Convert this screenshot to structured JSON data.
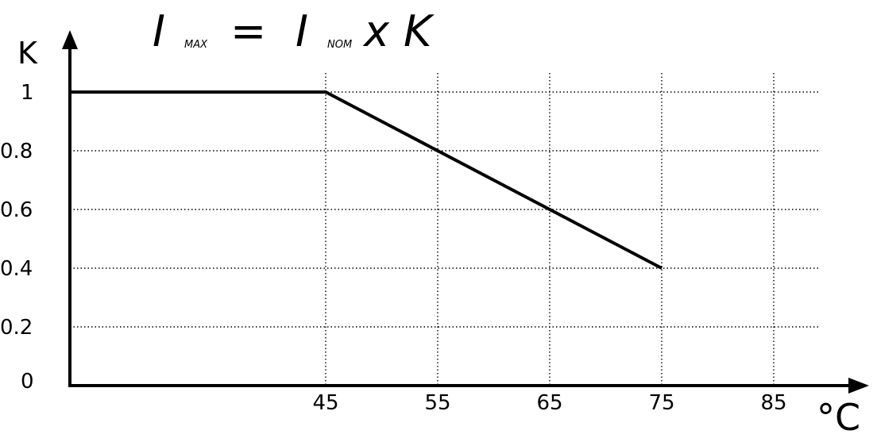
{
  "formula": {
    "lhs_symbol": "I",
    "lhs_subscript": "MAX",
    "equals": "=",
    "rhs_symbol": "I",
    "rhs_subscript": "NOM",
    "times": "x",
    "factor": "K"
  },
  "chart_data": {
    "type": "line",
    "title": "",
    "xlabel": "°C",
    "ylabel": "K",
    "x_ticks": [
      45,
      55,
      65,
      75,
      85
    ],
    "y_ticks": [
      "0",
      "0.2",
      "0.4",
      "0.6",
      "0.8",
      "1"
    ],
    "y_tick_values": [
      0,
      0.2,
      0.4,
      0.6,
      0.8,
      1
    ],
    "xlim": [
      21,
      90
    ],
    "ylim": [
      0,
      1
    ],
    "grid": true,
    "grid_style": "dotted",
    "series": [
      {
        "x": [
          21,
          45,
          75
        ],
        "y": [
          1,
          1,
          0.4
        ],
        "color": "#000000"
      }
    ]
  }
}
